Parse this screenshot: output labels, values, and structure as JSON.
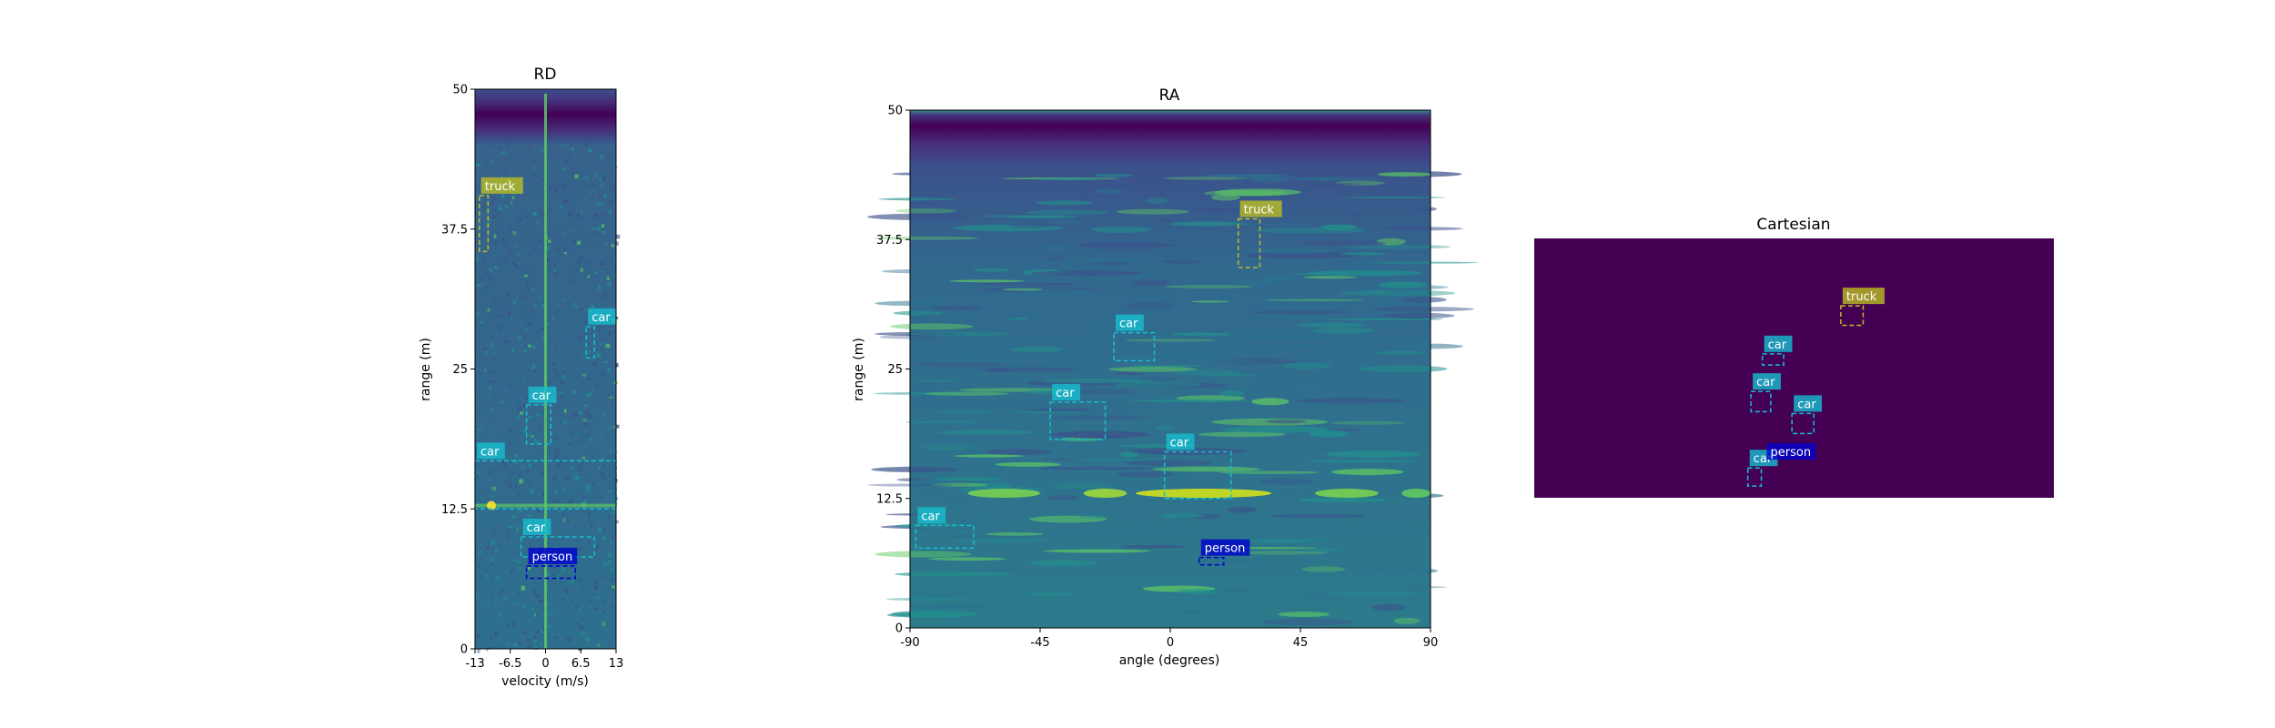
{
  "chart_data": [
    {
      "type": "heatmap",
      "title": "RD",
      "xlabel": "velocity (m/s)",
      "ylabel": "range (m)",
      "xlim": [
        -13,
        13
      ],
      "ylim": [
        0,
        50
      ],
      "xticks": [
        "-13",
        "-6.5",
        "0",
        "6.5",
        "13"
      ],
      "xtick_values": [
        -13,
        -6.5,
        0,
        6.5,
        13
      ],
      "yticks": [
        "0",
        "12.5",
        "25",
        "37.5",
        "50"
      ],
      "ytick_values": [
        0,
        12.5,
        25,
        37.5,
        50
      ],
      "colormap": "viridis",
      "boxes": [
        {
          "label": "truck",
          "x0": -12.2,
          "x1": -10.6,
          "y0": 35.5,
          "y1": 40.5,
          "color": "#bcbd22"
        },
        {
          "label": "car",
          "x0": 7.5,
          "x1": 9.0,
          "y0": 26.0,
          "y1": 28.8,
          "color": "#17becf"
        },
        {
          "label": "car",
          "x0": -3.5,
          "x1": 1.0,
          "y0": 18.3,
          "y1": 21.8,
          "color": "#17becf"
        },
        {
          "label": "car",
          "x0": -13.0,
          "x1": 13.0,
          "y0": 12.5,
          "y1": 16.8,
          "color": "#17becf"
        },
        {
          "label": "car",
          "x0": -4.5,
          "x1": 9.0,
          "y0": 8.2,
          "y1": 10.0,
          "color": "#17becf"
        },
        {
          "label": "person",
          "x0": -3.5,
          "x1": 5.5,
          "y0": 6.3,
          "y1": 7.4,
          "color": "#0000cd"
        }
      ]
    },
    {
      "type": "heatmap",
      "title": "RA",
      "xlabel": "angle (degrees)",
      "ylabel": "range (m)",
      "xlim": [
        -90,
        90
      ],
      "ylim": [
        0,
        50
      ],
      "xticks": [
        "-90",
        "-45",
        "0",
        "45",
        "90"
      ],
      "xtick_values": [
        -90,
        -45,
        0,
        45,
        90
      ],
      "yticks": [
        "0",
        "12.5",
        "25",
        "37.5",
        "50"
      ],
      "ytick_values": [
        0,
        12.5,
        25,
        37.5,
        50
      ],
      "colormap": "viridis",
      "boxes": [
        {
          "label": "truck",
          "x0": 23.5,
          "x1": 31,
          "y0": 34.8,
          "y1": 39.5,
          "color": "#bcbd22"
        },
        {
          "label": "car",
          "x0": -19.5,
          "x1": -5.5,
          "y0": 25.8,
          "y1": 28.5,
          "color": "#17becf"
        },
        {
          "label": "car",
          "x0": -41.5,
          "x1": -22.5,
          "y0": 18.2,
          "y1": 21.8,
          "color": "#17becf"
        },
        {
          "label": "car",
          "x0": -2,
          "x1": 21,
          "y0": 12.5,
          "y1": 17.0,
          "color": "#17becf"
        },
        {
          "label": "car",
          "x0": -88,
          "x1": -68,
          "y0": 7.7,
          "y1": 9.9,
          "color": "#17becf"
        },
        {
          "label": "person",
          "x0": 10,
          "x1": 18.5,
          "y0": 6.1,
          "y1": 6.8,
          "color": "#0000cd"
        }
      ]
    },
    {
      "type": "heatmap",
      "title": "Cartesian",
      "background": "#440154",
      "boxes": [
        {
          "label": "truck",
          "x0": 0.59,
          "x1": 0.633,
          "y0": 0.26,
          "y1": 0.335,
          "color": "#bcbd22"
        },
        {
          "label": "car",
          "x0": 0.439,
          "x1": 0.48,
          "y0": 0.445,
          "y1": 0.488,
          "color": "#17becf"
        },
        {
          "label": "car",
          "x0": 0.417,
          "x1": 0.455,
          "y0": 0.59,
          "y1": 0.668,
          "color": "#17becf"
        },
        {
          "label": "car",
          "x0": 0.496,
          "x1": 0.538,
          "y0": 0.675,
          "y1": 0.752,
          "color": "#17becf"
        },
        {
          "label": "car",
          "x0": 0.411,
          "x1": 0.437,
          "y0": 0.885,
          "y1": 0.955,
          "color": "#17becf"
        },
        {
          "label": "person",
          "x0": 0.5,
          "x1": 0.52,
          "y0": 0.86,
          "y1": 0.88,
          "color": "#0000cd"
        }
      ]
    }
  ]
}
